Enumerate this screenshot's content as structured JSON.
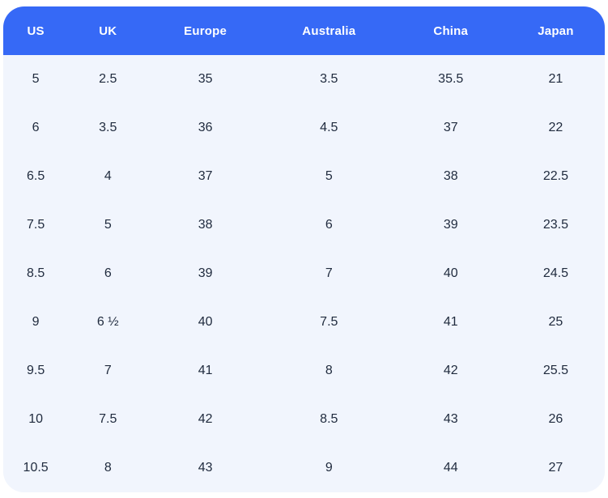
{
  "chart_data": {
    "type": "table",
    "columns": [
      "US",
      "UK",
      "Europe",
      "Australia",
      "China",
      "Japan"
    ],
    "rows": [
      [
        "5",
        "2.5",
        "35",
        "3.5",
        "35.5",
        "21"
      ],
      [
        "6",
        "3.5",
        "36",
        "4.5",
        "37",
        "22"
      ],
      [
        "6.5",
        "4",
        "37",
        "5",
        "38",
        "22.5"
      ],
      [
        "7.5",
        "5",
        "38",
        "6",
        "39",
        "23.5"
      ],
      [
        "8.5",
        "6",
        "39",
        "7",
        "40",
        "24.5"
      ],
      [
        "9",
        "6 ½",
        "40",
        "7.5",
        "41",
        "25"
      ],
      [
        "9.5",
        "7",
        "41",
        "8",
        "42",
        "25.5"
      ],
      [
        "10",
        "7.5",
        "42",
        "8.5",
        "43",
        "26"
      ],
      [
        "10.5",
        "8",
        "43",
        "9",
        "44",
        "27"
      ]
    ],
    "legend": "none",
    "grid": "off"
  },
  "colors": {
    "header_bg": "#3669F6",
    "row_bg": "#F1F5FD",
    "header_text": "#FFFFFF",
    "body_text": "#1F2A3D",
    "page_bg": "#FFFFFF"
  }
}
